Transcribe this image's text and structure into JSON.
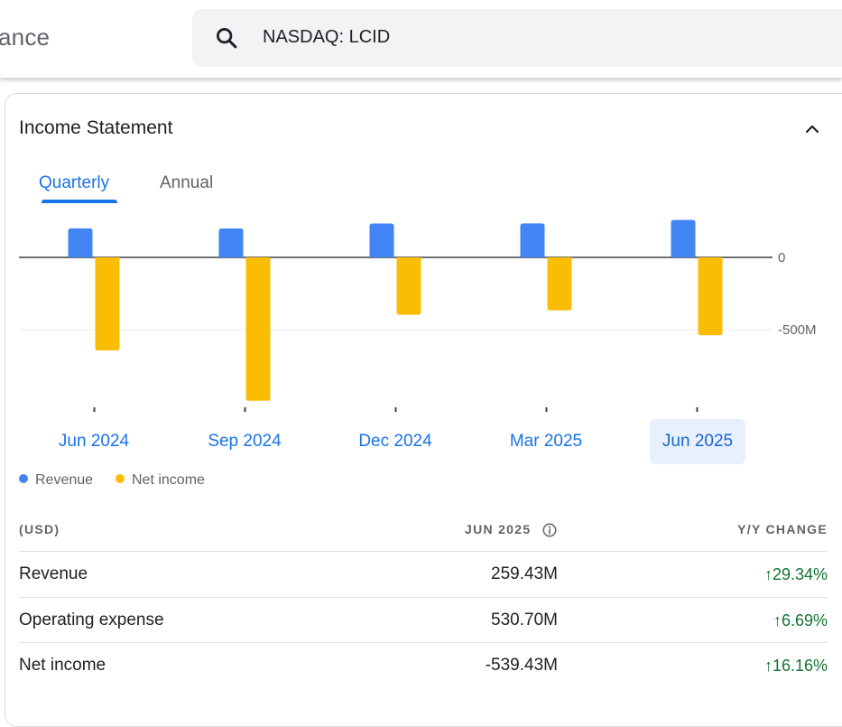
{
  "header": {
    "brand_partial": "ance",
    "search_text": "NASDAQ: LCID"
  },
  "card": {
    "title": "Income Statement",
    "tabs": [
      {
        "label": "Quarterly",
        "active": true
      },
      {
        "label": "Annual",
        "active": false
      }
    ]
  },
  "chart_data": {
    "type": "bar",
    "categories": [
      "Jun 2024",
      "Sep 2024",
      "Dec 2024",
      "Mar 2025",
      "Jun 2025"
    ],
    "selected_category": "Jun 2025",
    "series": [
      {
        "name": "Revenue",
        "color": "#4285f4",
        "values": [
          200.58,
          200.04,
          234.47,
          235.05,
          259.43
        ]
      },
      {
        "name": "Net income",
        "color": "#fbbc04",
        "values": [
          -643.37,
          -992.5,
          -397.24,
          -366.19,
          -539.43
        ]
      }
    ],
    "y_tick_labels": [
      "0",
      "-500M"
    ],
    "y_ticks": [
      0,
      -500
    ],
    "ylim": [
      -1000,
      300
    ],
    "grid": true,
    "legend_position": "bottom-left"
  },
  "table": {
    "headers": {
      "label": "(USD)",
      "period": "JUN 2025",
      "change": "Y/Y CHANGE"
    },
    "rows": [
      {
        "label": "Revenue",
        "value": "259.43M",
        "change": "29.34%"
      },
      {
        "label": "Operating expense",
        "value": "530.70M",
        "change": "6.69%"
      },
      {
        "label": "Net income",
        "value": "-539.43M",
        "change": "16.16%"
      }
    ],
    "change_arrow": "↑",
    "positive_color": "#137333"
  }
}
